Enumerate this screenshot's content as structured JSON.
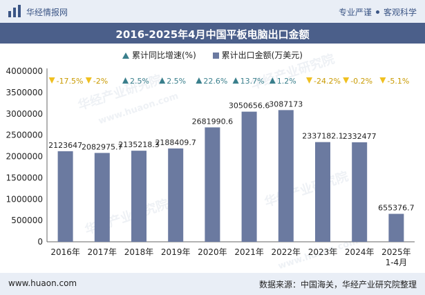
{
  "header": {
    "site_name": "华经情报网",
    "tag1": "专业严谨",
    "tag2": "客观科学"
  },
  "footer": {
    "url": "www.huaon.com",
    "source": "数据来源：中国海关，华经产业研究院整理"
  },
  "watermark": {
    "text": "华经产业研究院",
    "url": "www.huaon.com"
  },
  "colors": {
    "bar": "#6b7aa0",
    "up": "#3a7f8c",
    "down": "#f0c020"
  },
  "chart_data": {
    "type": "bar",
    "title": "2016-2025年4月中国平板电脑出口金额",
    "legend": {
      "growth": "累计同比增速(%)",
      "amount": "累计出口金额(万美元)"
    },
    "categories": [
      "2016年",
      "2017年",
      "2018年",
      "2019年",
      "2020年",
      "2021年",
      "2022年",
      "2023年",
      "2024年",
      "2025年\n1-4月"
    ],
    "values": [
      2123647,
      2082975.7,
      2135218.3,
      2188409.7,
      2681990.6,
      3050656.6,
      3087173,
      2337182.1,
      2332477,
      655376.7
    ],
    "value_labels": [
      "2123647",
      "2082975.7",
      "2135218.3",
      "2188409.7",
      "2681990.6",
      "3050656.6",
      "3087173",
      "2337182.1",
      "2332477",
      "655376.7"
    ],
    "growth": [
      "-17.5%",
      "-2%",
      "2.5%",
      "2.5%",
      "22.6%",
      "13.7%",
      "1.2%",
      "-24.2%",
      "-0.2%",
      "-5.1%"
    ],
    "growth_dir": [
      "down",
      "down",
      "up",
      "up",
      "up",
      "up",
      "up",
      "down",
      "down",
      "down"
    ],
    "ylim": [
      0,
      4000000
    ],
    "yticks": [
      "0",
      "500000",
      "1000000",
      "1500000",
      "2000000",
      "2500000",
      "3000000",
      "3500000",
      "4000000"
    ]
  }
}
